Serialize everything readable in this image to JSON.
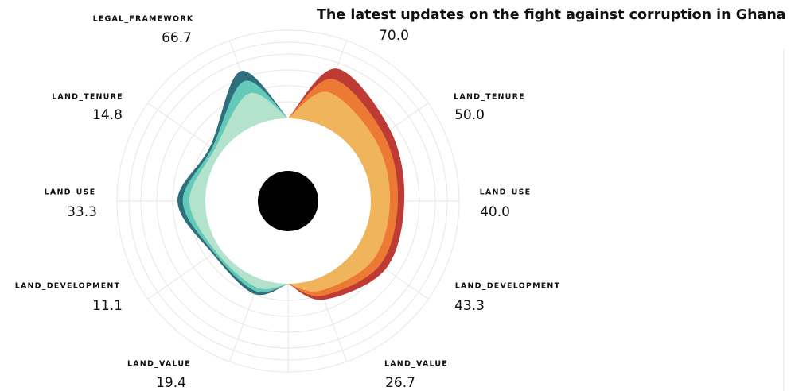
{
  "chart_data": {
    "type": "radial",
    "title": "The latest updates on the fight against corruption in Ghana",
    "series": [
      {
        "categories": [
          "LEGAL_FRAMEWORK",
          "LAND_TENURE",
          "LAND_USE",
          "LAND_DEVELOPMENT",
          "LAND_VALUE"
        ],
        "values": [
          66.7,
          14.8,
          33.3,
          11.1,
          19.4
        ],
        "value_labels": [
          "66.7",
          "14.8",
          "33.3",
          "11.1",
          "19.4"
        ],
        "colors": [
          "#2f6f7d",
          "#63c9b9",
          "#b3e3cd"
        ]
      },
      {
        "categories": [
          null,
          "LAND_TENURE",
          "LAND_USE",
          "LAND_DEVELOPMENT",
          "LAND_VALUE"
        ],
        "values": [
          70.0,
          50.0,
          40.0,
          43.3,
          26.7
        ],
        "value_labels": [
          "70.0",
          "50.0",
          "40.0",
          "43.3",
          "26.7"
        ],
        "colors": [
          "#bd3b34",
          "#ec7a35",
          "#f0b45c"
        ]
      }
    ]
  }
}
